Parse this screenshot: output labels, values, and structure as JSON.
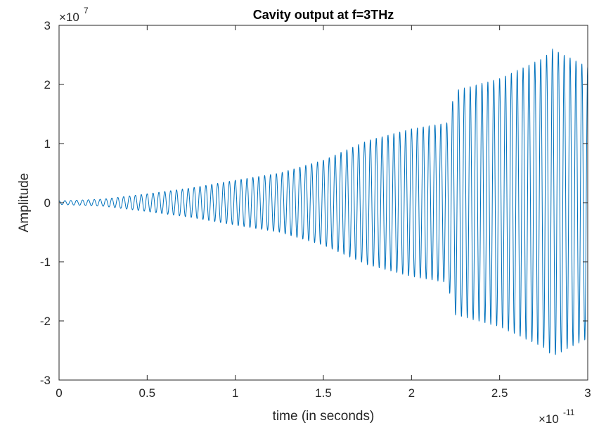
{
  "chart_data": {
    "type": "line",
    "title": "Cavity output at f=3THz",
    "xlabel": "time (in seconds)",
    "ylabel": "Amplitude",
    "x_multiplier_base": "×10",
    "x_multiplier_exp": "-11",
    "y_multiplier_base": "×10",
    "y_multiplier_exp": "7",
    "xlim": [
      0,
      3
    ],
    "ylim": [
      -3,
      3
    ],
    "x_ticks": [
      0,
      0.5,
      1,
      1.5,
      2,
      2.5,
      3
    ],
    "x_tick_labels": [
      "0",
      "0.5",
      "1",
      "1.5",
      "2",
      "2.5",
      "3"
    ],
    "y_ticks": [
      -3,
      -2,
      -1,
      0,
      1,
      2,
      3
    ],
    "y_tick_labels": [
      "-3",
      "-2",
      "-1",
      "0",
      "1",
      "2",
      "3"
    ],
    "grid": false,
    "line_color": "#0072BD",
    "signal": {
      "frequency_cycles_per_unit": 30,
      "note_units": "x in units of 1e-11 s, y in units of 1e7",
      "envelope_x": [
        0,
        0.25,
        0.5,
        0.75,
        1.0,
        1.25,
        1.5,
        1.75,
        2.0,
        2.2,
        2.25,
        2.5,
        2.75,
        2.8,
        3.0
      ],
      "envelope_y": [
        0.03,
        0.06,
        0.15,
        0.25,
        0.38,
        0.5,
        0.72,
        1.05,
        1.25,
        1.35,
        1.9,
        2.1,
        2.45,
        2.6,
        2.3
      ]
    }
  }
}
